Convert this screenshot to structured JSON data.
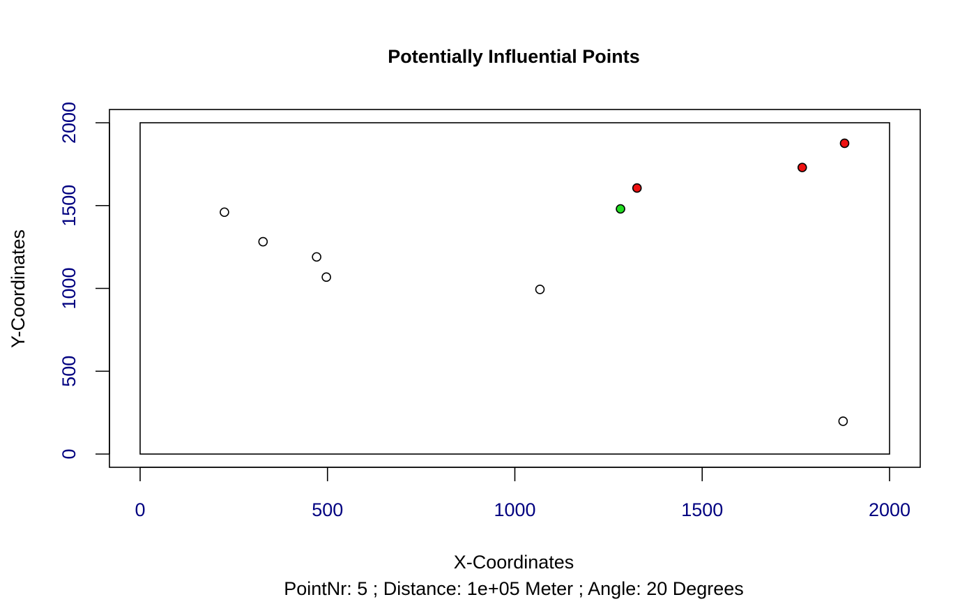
{
  "chart_data": {
    "type": "scatter",
    "title": "Potentially Influential Points",
    "xlabel": "X-Coordinates",
    "ylabel": "Y-Coordinates",
    "subtitle": "PointNr:  5 ; Distance:  1e+05 Meter ; Angle:  20 Degrees",
    "xlim": [
      0,
      2000
    ],
    "ylim": [
      0,
      2000
    ],
    "x_ticks": [
      0,
      500,
      1000,
      1500,
      2000
    ],
    "y_ticks": [
      0,
      500,
      1000,
      1500,
      2000
    ],
    "tick_label_color": "#000080",
    "region": {
      "x": [
        0,
        2000
      ],
      "y": [
        0,
        2000
      ]
    },
    "grid": false,
    "points": [
      {
        "x": 225,
        "y": 1460,
        "fill": "#ffffff"
      },
      {
        "x": 328,
        "y": 1282,
        "fill": "#ffffff"
      },
      {
        "x": 471,
        "y": 1190,
        "fill": "#ffffff"
      },
      {
        "x": 497,
        "y": 1068,
        "fill": "#ffffff"
      },
      {
        "x": 1067,
        "y": 994,
        "fill": "#ffffff"
      },
      {
        "x": 1282,
        "y": 1480,
        "fill": "#22dd22"
      },
      {
        "x": 1326,
        "y": 1606,
        "fill": "#ee1111"
      },
      {
        "x": 1767,
        "y": 1730,
        "fill": "#ee1111"
      },
      {
        "x": 1880,
        "y": 1876,
        "fill": "#ee1111"
      },
      {
        "x": 1876,
        "y": 198,
        "fill": "#ffffff"
      }
    ]
  }
}
